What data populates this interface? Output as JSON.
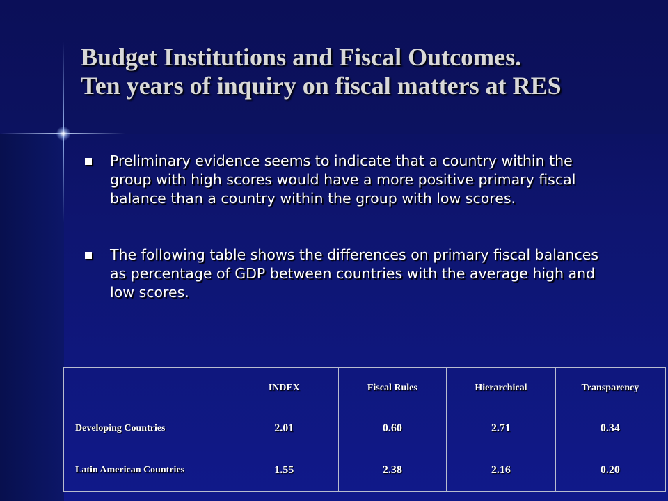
{
  "slide": {
    "title_line1": "Budget Institutions and Fiscal Outcomes.",
    "title_line2": "Ten years of inquiry on fiscal matters at RES"
  },
  "bullets": [
    "Preliminary evidence seems to indicate that a country within the group with high scores would have a more positive primary fiscal balance than a country within the group with low scores.",
    "The following table shows the differences on primary fiscal balances as percentage of GDP between countries with the average high and low scores."
  ],
  "table": {
    "headers": [
      "",
      "INDEX",
      "Fiscal Rules",
      "Hierarchical",
      "Transparency"
    ],
    "rows": [
      {
        "label": "Developing Countries",
        "values": [
          "2.01",
          "0.60",
          "2.71",
          "0.34"
        ]
      },
      {
        "label": "Latin American Countries",
        "values": [
          "1.55",
          "2.38",
          "2.16",
          "0.20"
        ]
      }
    ]
  }
}
